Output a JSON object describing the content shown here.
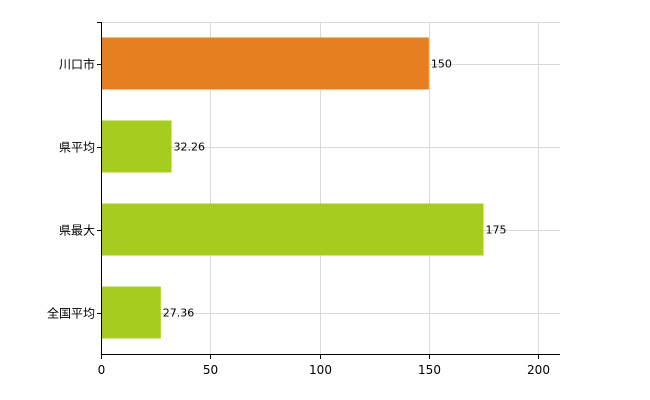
{
  "chart_data": {
    "type": "bar",
    "orientation": "horizontal",
    "categories": [
      "川口市",
      "県平均",
      "県最大",
      "全国平均"
    ],
    "values": [
      150,
      32.26,
      175,
      27.36
    ],
    "value_labels": [
      "150",
      "32.26",
      "175",
      "27.36"
    ],
    "bar_colors": [
      "#e67e22",
      "#a5cc1f",
      "#a5cc1f",
      "#a5cc1f"
    ],
    "xlim": [
      0,
      210
    ],
    "x_ticks": [
      0,
      50,
      100,
      150,
      200
    ],
    "x_tick_labels": [
      "0",
      "50",
      "100",
      "150",
      "200"
    ],
    "grid": true,
    "legend": "none"
  }
}
